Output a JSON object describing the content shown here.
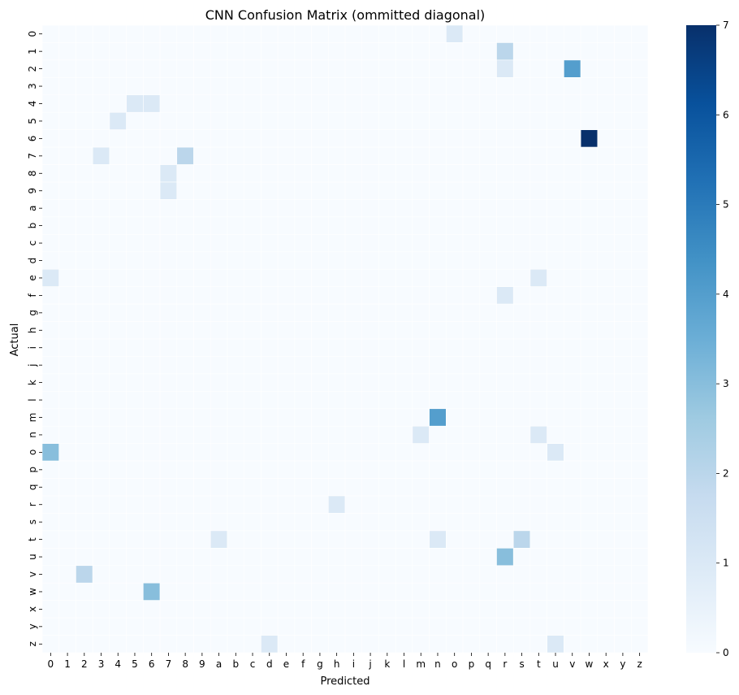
{
  "chart_data": {
    "type": "heatmap",
    "title": "CNN Confusion Matrix (ommitted diagonal)",
    "xlabel": "Predicted",
    "ylabel": "Actual",
    "labels": [
      "0",
      "1",
      "2",
      "3",
      "4",
      "5",
      "6",
      "7",
      "8",
      "9",
      "a",
      "b",
      "c",
      "d",
      "e",
      "f",
      "g",
      "h",
      "i",
      "j",
      "k",
      "l",
      "m",
      "n",
      "o",
      "p",
      "q",
      "r",
      "s",
      "t",
      "u",
      "v",
      "w",
      "x",
      "y",
      "z"
    ],
    "cells": [
      {
        "actual": "0",
        "predicted": "o",
        "value": 1
      },
      {
        "actual": "1",
        "predicted": "r",
        "value": 2
      },
      {
        "actual": "2",
        "predicted": "r",
        "value": 1
      },
      {
        "actual": "2",
        "predicted": "v",
        "value": 4
      },
      {
        "actual": "4",
        "predicted": "5",
        "value": 1
      },
      {
        "actual": "4",
        "predicted": "6",
        "value": 1
      },
      {
        "actual": "5",
        "predicted": "4",
        "value": 1
      },
      {
        "actual": "6",
        "predicted": "w",
        "value": 7
      },
      {
        "actual": "7",
        "predicted": "3",
        "value": 1
      },
      {
        "actual": "7",
        "predicted": "8",
        "value": 2
      },
      {
        "actual": "8",
        "predicted": "7",
        "value": 1
      },
      {
        "actual": "9",
        "predicted": "7",
        "value": 1
      },
      {
        "actual": "e",
        "predicted": "0",
        "value": 1
      },
      {
        "actual": "e",
        "predicted": "t",
        "value": 1
      },
      {
        "actual": "f",
        "predicted": "r",
        "value": 1
      },
      {
        "actual": "m",
        "predicted": "n",
        "value": 4
      },
      {
        "actual": "n",
        "predicted": "m",
        "value": 1
      },
      {
        "actual": "n",
        "predicted": "t",
        "value": 1
      },
      {
        "actual": "o",
        "predicted": "0",
        "value": 3
      },
      {
        "actual": "o",
        "predicted": "u",
        "value": 1
      },
      {
        "actual": "r",
        "predicted": "h",
        "value": 1
      },
      {
        "actual": "t",
        "predicted": "a",
        "value": 1
      },
      {
        "actual": "t",
        "predicted": "n",
        "value": 1
      },
      {
        "actual": "t",
        "predicted": "s",
        "value": 2
      },
      {
        "actual": "u",
        "predicted": "r",
        "value": 3
      },
      {
        "actual": "v",
        "predicted": "2",
        "value": 2
      },
      {
        "actual": "w",
        "predicted": "6",
        "value": 3
      },
      {
        "actual": "z",
        "predicted": "d",
        "value": 1
      },
      {
        "actual": "z",
        "predicted": "u",
        "value": 1
      }
    ],
    "colorbar": {
      "min": 0,
      "max": 7,
      "ticks": [
        "0",
        "1",
        "2",
        "3",
        "4",
        "5",
        "6",
        "7"
      ]
    },
    "colormap": "Blues",
    "colors": {
      "low": "#f7fbff",
      "high": "#08306b",
      "gridline": "#ffffff"
    }
  }
}
